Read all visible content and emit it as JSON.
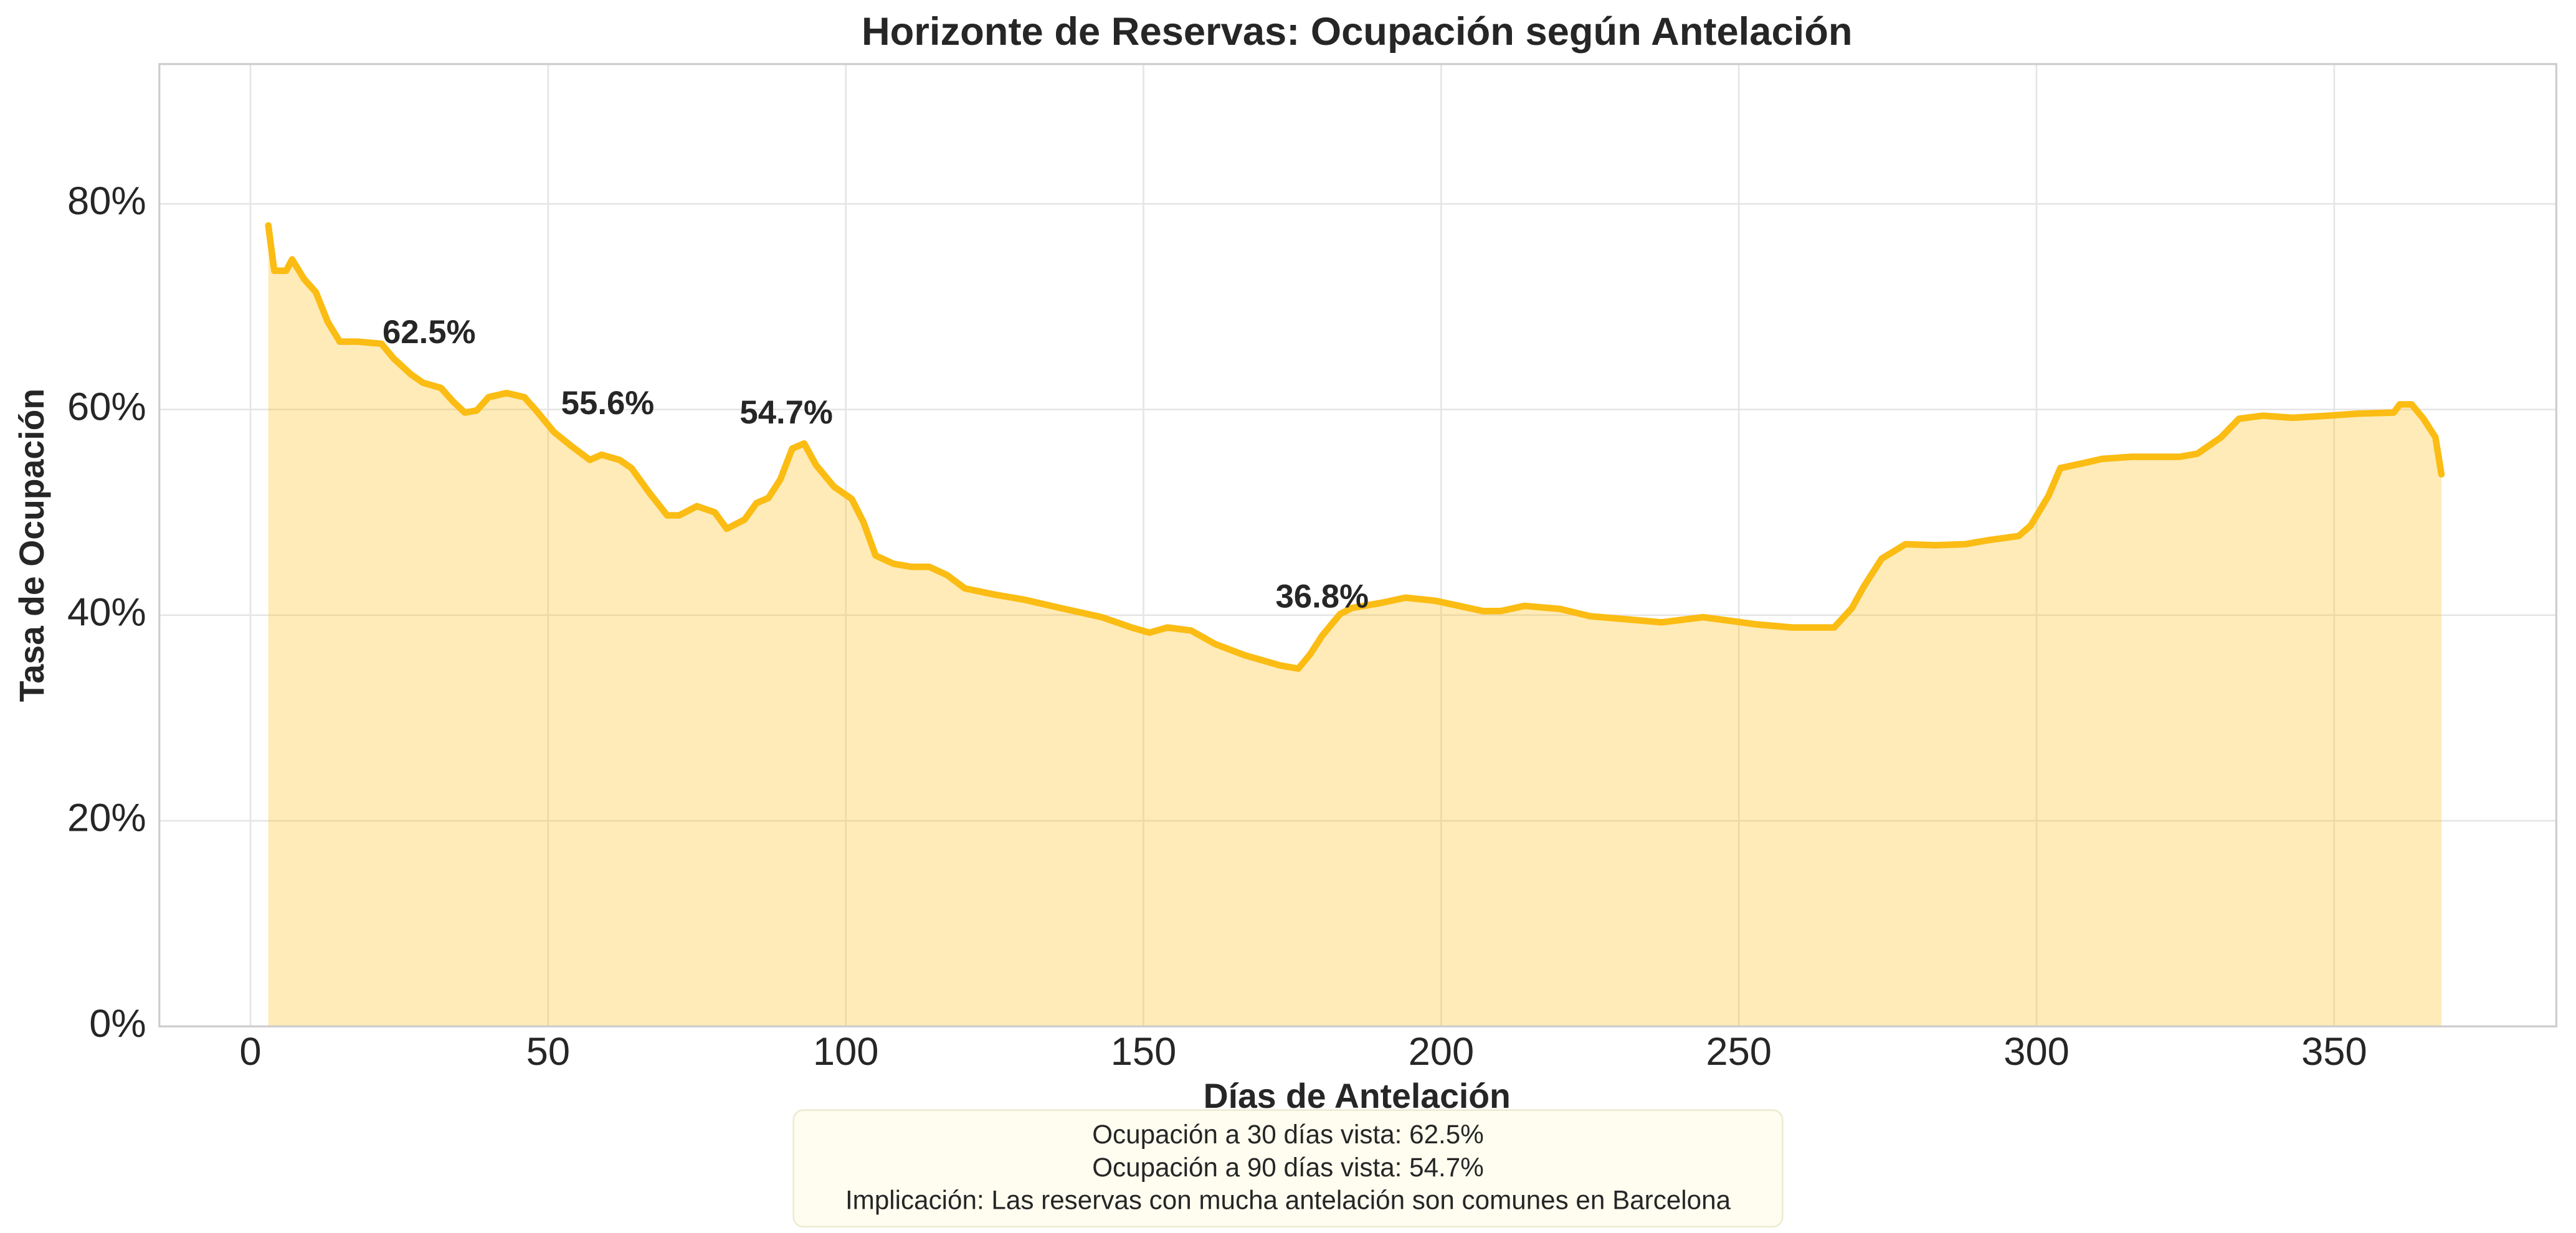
{
  "chart_data": {
    "type": "area",
    "title": "Horizonte de Reservas: Ocupación según Antelación",
    "xlabel": "Días de Antelación",
    "ylabel": "Tasa de Ocupación",
    "x": [
      3,
      4,
      6,
      7,
      9,
      11,
      13,
      15,
      18,
      22,
      24,
      27,
      29,
      32,
      34,
      36,
      38,
      40,
      43,
      46,
      48,
      51,
      54,
      57,
      59,
      62,
      64,
      67,
      70,
      72,
      75,
      78,
      80,
      83,
      85,
      87,
      89,
      91,
      93,
      95,
      98,
      101,
      103,
      105,
      108,
      111,
      114,
      117,
      120,
      125,
      130,
      136,
      143,
      148,
      151,
      154,
      158,
      162,
      167,
      173,
      176,
      178,
      180,
      183,
      185,
      190,
      194,
      199,
      203,
      207,
      210,
      214,
      220,
      225,
      231,
      237,
      244,
      253,
      259,
      266,
      269,
      271,
      274,
      278,
      283,
      288,
      292,
      297,
      299,
      302,
      304,
      308,
      311,
      316,
      324,
      327,
      331,
      334,
      338,
      343,
      349,
      354,
      360,
      361,
      363,
      365,
      367,
      368
    ],
    "values": [
      77.9,
      73.5,
      73.5,
      74.6,
      72.7,
      71.4,
      68.5,
      66.6,
      66.6,
      66.4,
      65.0,
      63.4,
      62.6,
      62.1,
      60.8,
      59.7,
      59.9,
      61.2,
      61.6,
      61.2,
      59.9,
      57.8,
      56.4,
      55.1,
      55.6,
      55.1,
      54.3,
      51.9,
      49.7,
      49.7,
      50.6,
      50.0,
      48.4,
      49.3,
      50.9,
      51.4,
      53.2,
      56.2,
      56.7,
      54.6,
      52.5,
      51.3,
      49.0,
      45.8,
      45.0,
      44.7,
      44.7,
      43.9,
      42.6,
      42.0,
      41.5,
      40.7,
      39.8,
      38.8,
      38.3,
      38.8,
      38.5,
      37.2,
      36.1,
      35.1,
      34.8,
      36.2,
      38.0,
      40.1,
      40.7,
      41.2,
      41.7,
      41.4,
      40.9,
      40.4,
      40.4,
      40.9,
      40.6,
      39.9,
      39.6,
      39.3,
      39.8,
      39.1,
      38.8,
      38.8,
      40.7,
      42.8,
      45.5,
      46.9,
      46.8,
      46.9,
      47.3,
      47.7,
      48.7,
      51.6,
      54.3,
      54.8,
      55.2,
      55.4,
      55.4,
      55.7,
      57.3,
      59.1,
      59.4,
      59.2,
      59.4,
      59.6,
      59.7,
      60.5,
      60.5,
      59.1,
      57.3,
      53.7
    ],
    "color": "#fbbc13",
    "xlim": [
      -15.3,
      387.3
    ],
    "ylim": [
      0,
      93.6
    ],
    "xticks": [
      0,
      50,
      100,
      150,
      200,
      250,
      300,
      350
    ],
    "yticks": [
      {
        "value": 0,
        "label": "0%"
      },
      {
        "value": 20,
        "label": "20%"
      },
      {
        "value": 40,
        "label": "40%"
      },
      {
        "value": 60,
        "label": "60%"
      },
      {
        "value": 80,
        "label": "80%"
      }
    ],
    "grid": true,
    "annotations": [
      {
        "x": 30,
        "value": 62.5,
        "label": "62.5%"
      },
      {
        "x": 60,
        "value": 55.6,
        "label": "55.6%"
      },
      {
        "x": 90,
        "value": 54.7,
        "label": "54.7%"
      },
      {
        "x": 180,
        "value": 36.8,
        "label": "36.8%"
      }
    ],
    "note_lines": [
      "Ocupación a 30 días vista: 62.5%",
      "Ocupación a 90 días vista: 54.7%",
      "Implicación: Las reservas con mucha antelación son comunes en Barcelona"
    ]
  }
}
